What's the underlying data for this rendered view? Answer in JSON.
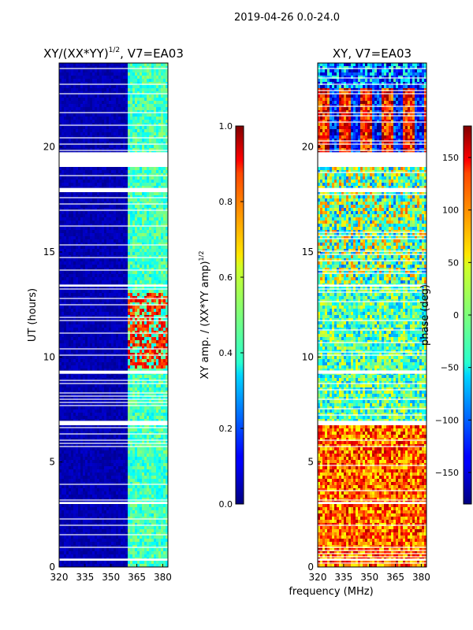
{
  "suptitle": "2019-04-26 0.0-24.0",
  "xlabel_common": "frequency (MHz)",
  "chart_data": [
    {
      "type": "heatmap",
      "title_main": "XY/(XX*YY)",
      "title_sup": "1/2",
      "title_rest": ", V7=EA03",
      "xlabel": "",
      "ylabel": "UT (hours)",
      "xlim": [
        320,
        383
      ],
      "ylim": [
        0,
        24
      ],
      "xticks": [
        320,
        335,
        350,
        365,
        380
      ],
      "yticks": [
        0,
        5,
        10,
        15,
        20
      ],
      "gaps_hours": [
        [
          19.05,
          19.75
        ],
        [
          17.85,
          18.05
        ],
        [
          6.75,
          6.95
        ],
        [
          9.2,
          9.35
        ],
        [
          0.3,
          0.4
        ],
        [
          3.0,
          3.1
        ],
        [
          13.35,
          13.45
        ]
      ],
      "colorbar": {
        "label_main": "XY amp. / (XX*YY amp)",
        "label_sup": "1/2",
        "vmin": 0.0,
        "vmax": 1.0,
        "ticks": [
          "0.0",
          "0.2",
          "0.4",
          "0.6",
          "0.8",
          "1.0"
        ]
      }
    },
    {
      "type": "heatmap",
      "title": "XY, V7=EA03",
      "xlabel": "",
      "ylabel": "",
      "xlim": [
        320,
        383
      ],
      "ylim": [
        0,
        24
      ],
      "xticks": [
        320,
        335,
        350,
        365,
        380
      ],
      "yticks": [
        0,
        5,
        10,
        15,
        20
      ],
      "gaps_hours": [
        [
          19.05,
          19.75
        ],
        [
          17.85,
          18.05
        ],
        [
          6.75,
          6.95
        ],
        [
          9.2,
          9.35
        ],
        [
          0.3,
          0.4
        ],
        [
          3.0,
          3.1
        ],
        [
          13.35,
          13.45
        ]
      ],
      "colorbar": {
        "label": "phase (deg)",
        "vmin": -180,
        "vmax": 180,
        "ticks": [
          "−150",
          "−100",
          "−50",
          "0",
          "50",
          "100",
          "150"
        ],
        "tick_values": [
          -150,
          -100,
          -50,
          0,
          50,
          100,
          150
        ]
      }
    }
  ]
}
